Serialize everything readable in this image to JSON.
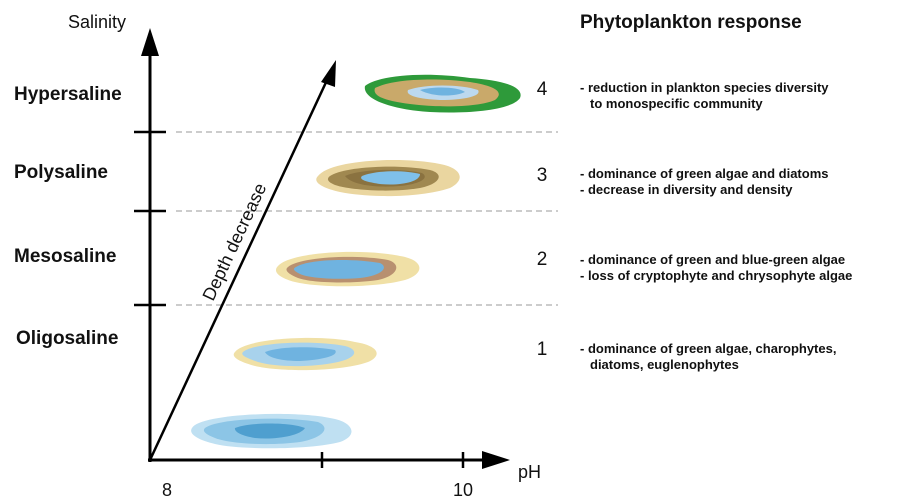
{
  "axes": {
    "y_label": "Salinity",
    "x_label": "pH",
    "x_ticks": [
      "8",
      "10"
    ]
  },
  "salinity_levels": [
    "Hypersaline",
    "Polysaline",
    "Mesosaline",
    "Oligosaline"
  ],
  "arrow_label": "Depth decrease",
  "response_title": "Phytoplankton response",
  "stages": [
    {
      "number": "4",
      "lines": [
        "- reduction in plankton species diversity",
        "to monospecific community"
      ]
    },
    {
      "number": "3",
      "lines": [
        "- dominance of green algae and diatoms",
        "- decrease in diversity and density"
      ]
    },
    {
      "number": "2",
      "lines": [
        "- dominance of green and blue-green algae",
        "- loss of cryptophyte and chrysophyte algae"
      ]
    },
    {
      "number": "1",
      "lines": [
        "- dominance of green algae, charophytes,",
        "diatoms, euglenophytes"
      ]
    }
  ]
}
